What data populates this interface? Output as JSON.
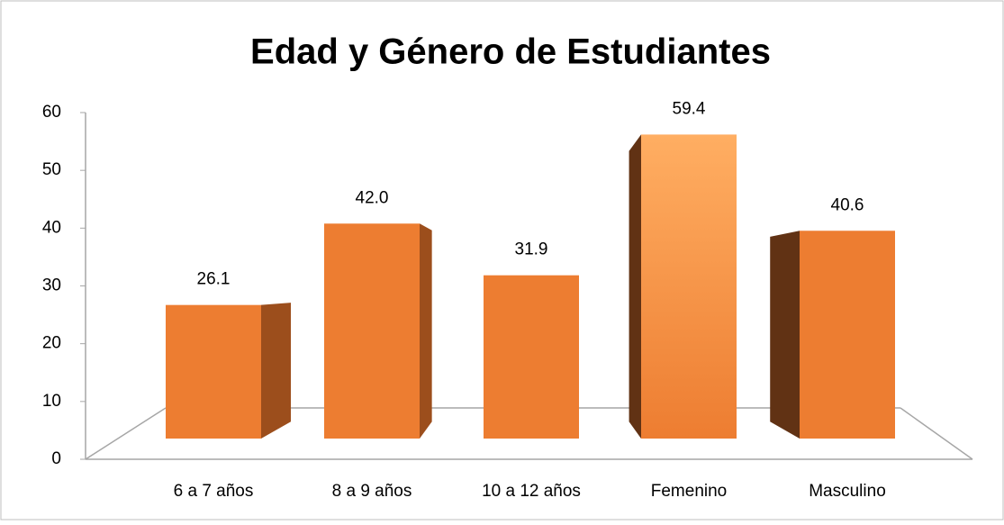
{
  "chart_data": {
    "type": "bar3d",
    "title": "Edad y Género de Estudiantes",
    "categories": [
      "6 a 7 años",
      "8 a 9 años",
      "10 a 12 años",
      "Femenino",
      "Masculino"
    ],
    "values": [
      26.1,
      42.0,
      31.9,
      59.4,
      40.6
    ],
    "value_labels": [
      "26.1",
      "42.0",
      "31.9",
      "59.4",
      "40.6"
    ],
    "color": "#ED7D31",
    "ylim": [
      0,
      60
    ],
    "yticks": [
      0,
      10,
      20,
      30,
      40,
      50,
      60
    ],
    "grid": false
  }
}
